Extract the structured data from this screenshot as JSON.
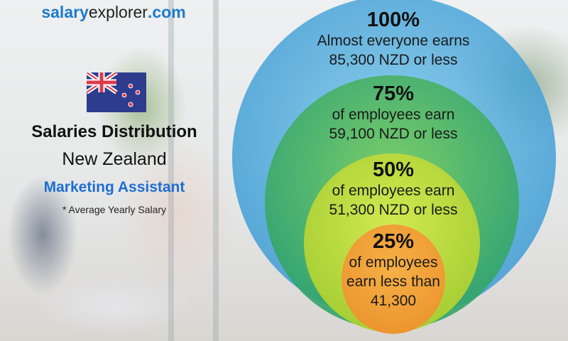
{
  "brand": {
    "part1": "salary",
    "part2": "explorer",
    "part3": ".com"
  },
  "flag": {
    "country": "New Zealand",
    "icon": "new-zealand-flag-icon"
  },
  "header": {
    "title": "Salaries Distribution",
    "country": "New Zealand",
    "job": "Marketing Assistant",
    "note": "* Average Yearly Salary"
  },
  "colors": {
    "brand_blue": "#1d7bc9",
    "job_blue": "#1d6fd0",
    "circle_100": "#3a9fd8",
    "circle_75": "#3fb36a",
    "circle_50": "#c5dc3c",
    "circle_25": "#f0a040"
  },
  "levels": [
    {
      "percent": "100%",
      "line1": "Almost everyone earns",
      "line2": "85,300 NZD or less"
    },
    {
      "percent": "75%",
      "line1": "of employees earn",
      "line2": "59,100 NZD or less"
    },
    {
      "percent": "50%",
      "line1": "of employees earn",
      "line2": "51,300 NZD or less"
    },
    {
      "percent": "25%",
      "line1": "of employees",
      "line2": "earn less than",
      "line3": "41,300"
    }
  ]
}
